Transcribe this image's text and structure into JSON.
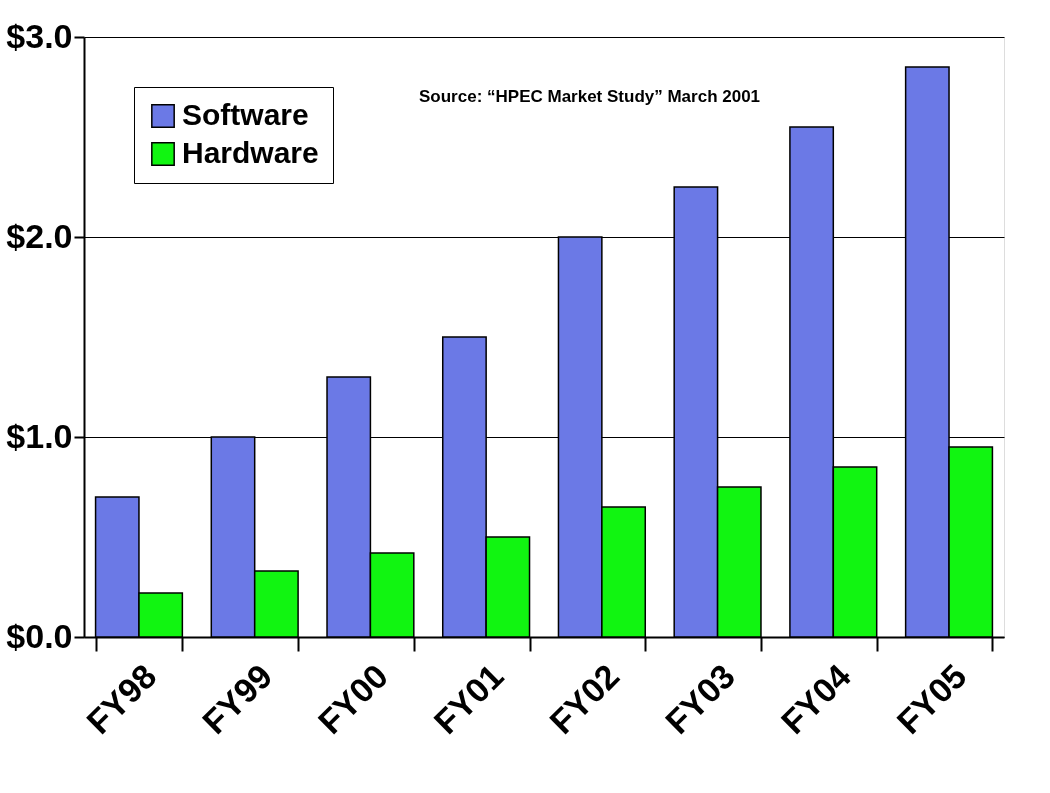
{
  "chart_data": {
    "type": "bar",
    "categories": [
      "FY98",
      "FY99",
      "FY00",
      "FY01",
      "FY02",
      "FY03",
      "FY04",
      "FY05"
    ],
    "series": [
      {
        "name": "Software",
        "color": "#6b79e6",
        "values": [
          0.7,
          1.0,
          1.3,
          1.5,
          2.0,
          2.25,
          2.55,
          2.85
        ]
      },
      {
        "name": "Hardware",
        "color": "#11f511",
        "values": [
          0.22,
          0.33,
          0.42,
          0.5,
          0.65,
          0.75,
          0.85,
          0.95
        ]
      }
    ],
    "ylim": [
      0,
      3
    ],
    "yticks": [
      {
        "value": 0,
        "label": "$0.0"
      },
      {
        "value": 1,
        "label": "$1.0"
      },
      {
        "value": 2,
        "label": "$2.0"
      },
      {
        "value": 3,
        "label": "$3.0"
      }
    ],
    "grid": "y",
    "legend": "top left",
    "annotations": [
      "Source: “HPEC Market Study” March 2001"
    ]
  }
}
